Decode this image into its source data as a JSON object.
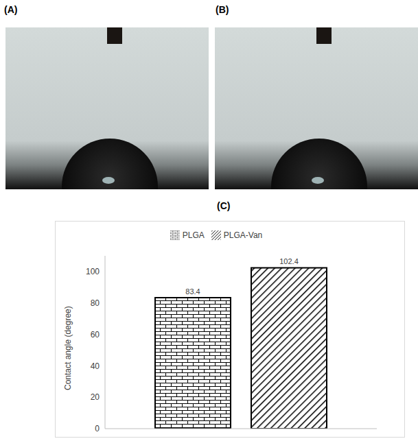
{
  "photo_labels": [
    "(A)",
    "(B)"
  ],
  "chart_label": "(C)",
  "chart_data": {
    "type": "bar",
    "categories": [
      null
    ],
    "series": [
      {
        "name": "PLGA",
        "color": "#000000",
        "values": [
          83.4
        ]
      },
      {
        "name": "PLGA-Van",
        "color": "#000000",
        "values": [
          102.4
        ]
      }
    ],
    "ylabel": "Contact angle (degree)",
    "ylim": [
      0,
      110
    ],
    "yticks": [
      0,
      20,
      40,
      60,
      80,
      100
    ],
    "data_labels": true,
    "legend": "top",
    "grid": false
  }
}
